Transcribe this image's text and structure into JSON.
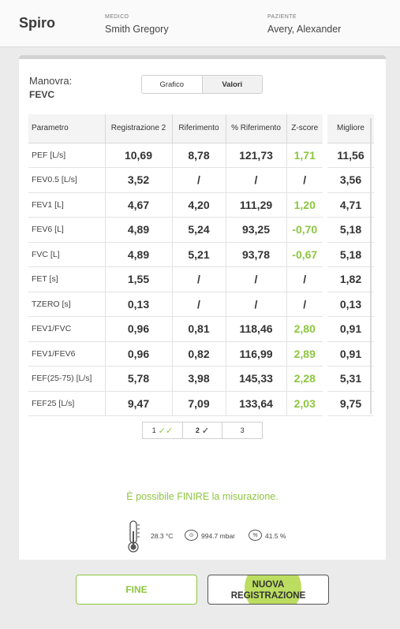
{
  "header": {
    "app_title": "Spiro",
    "medico_label": "MEDICO",
    "medico_value": "Smith Gregory",
    "paziente_label": "PAZIENTE",
    "paziente_value": "Avery, Alexander"
  },
  "maneuver": {
    "label": "Manovra:",
    "value": "FEVC"
  },
  "view_toggle": {
    "options": [
      "Grafico",
      "Valori"
    ],
    "selected": "Valori"
  },
  "table": {
    "columns": [
      "Parametro",
      "Registrazione 2",
      "Riferimento",
      "% Riferimento",
      "Z-score"
    ],
    "best_column": "Migliore",
    "rows": [
      {
        "param": "PEF [L/s]",
        "reg": "10,69",
        "ref": "8,78",
        "pct": "121,73",
        "z": "1,71",
        "best": "11,56"
      },
      {
        "param": "FEV0.5 [L/s]",
        "reg": "3,52",
        "ref": "/",
        "pct": "/",
        "z": "/",
        "best": "3,56"
      },
      {
        "param": "FEV1 [L]",
        "reg": "4,67",
        "ref": "4,20",
        "pct": "111,29",
        "z": "1,20",
        "best": "4,71"
      },
      {
        "param": "FEV6 [L]",
        "reg": "4,89",
        "ref": "5,24",
        "pct": "93,25",
        "z": "-0,70",
        "best": "5,18"
      },
      {
        "param": "FVC [L]",
        "reg": "4,89",
        "ref": "5,21",
        "pct": "93,78",
        "z": "-0,67",
        "best": "5,18"
      },
      {
        "param": "FET [s]",
        "reg": "1,55",
        "ref": "/",
        "pct": "/",
        "z": "/",
        "best": "1,82"
      },
      {
        "param": "TZERO [s]",
        "reg": "0,13",
        "ref": "/",
        "pct": "/",
        "z": "/",
        "best": "0,13"
      },
      {
        "param": "FEV1/FVC",
        "reg": "0,96",
        "ref": "0,81",
        "pct": "118,46",
        "z": "2,80",
        "best": "0,91"
      },
      {
        "param": "FEV1/FEV6",
        "reg": "0,96",
        "ref": "0,82",
        "pct": "116,99",
        "z": "2,89",
        "best": "0,91"
      },
      {
        "param": "FEF(25-75) [L/s]",
        "reg": "5,78",
        "ref": "3,98",
        "pct": "145,33",
        "z": "2,28",
        "best": "5,31"
      },
      {
        "param": "FEF25 [L/s]",
        "reg": "9,47",
        "ref": "7,09",
        "pct": "133,64",
        "z": "2,03",
        "best": "9,75"
      }
    ]
  },
  "pager": {
    "pages": [
      {
        "label": "1",
        "check": "double-check-green-icon"
      },
      {
        "label": "2",
        "check": "check-icon"
      },
      {
        "label": "3",
        "check": ""
      }
    ],
    "current": "2"
  },
  "message": "È possibile FINIRE la misurazione.",
  "environment": {
    "temperature": "28.3 °C",
    "pressure": "994.7 mbar",
    "humidity": "41.5 %"
  },
  "buttons": {
    "fine": "FINE",
    "nuova_line1": "NUOVA",
    "nuova_line2": "REGISTRAZIONE"
  },
  "colors": {
    "accent_green": "#8dc63f",
    "touch_indicator": "#b4d94f"
  }
}
